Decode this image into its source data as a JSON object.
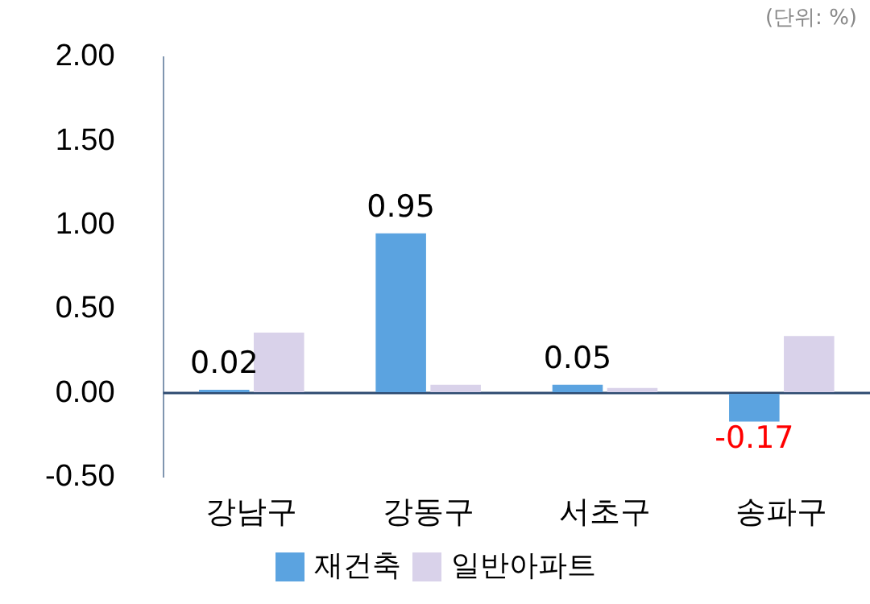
{
  "chart_data": {
    "type": "bar",
    "categories": [
      "강남구",
      "강동구",
      "서초구",
      "송파구"
    ],
    "series": [
      {
        "name": "재건축",
        "color": "#5ba3e0",
        "values": [
          0.02,
          0.95,
          0.05,
          -0.17
        ],
        "value_labels": [
          "0.02",
          "0.95",
          "0.05",
          "-0.17"
        ]
      },
      {
        "name": "일반아파트",
        "color": "#d9d2ea",
        "values": [
          0.36,
          0.05,
          0.03,
          0.34
        ]
      }
    ],
    "ylim": [
      -0.5,
      2
    ],
    "yticks": [
      {
        "value": -0.5,
        "label": "-0.50"
      },
      {
        "value": 0,
        "label": "0.00"
      },
      {
        "value": 0.5,
        "label": "0.50"
      },
      {
        "value": 1,
        "label": "1.00"
      },
      {
        "value": 1.5,
        "label": "1.50"
      },
      {
        "value": 2,
        "label": "2.00"
      }
    ],
    "grid": false,
    "ref_lines": [
      {
        "axis": "y",
        "value": 0,
        "color": "#2d4a70"
      }
    ],
    "legend": "bottom",
    "annotations": [
      "(단위: %)"
    ]
  }
}
